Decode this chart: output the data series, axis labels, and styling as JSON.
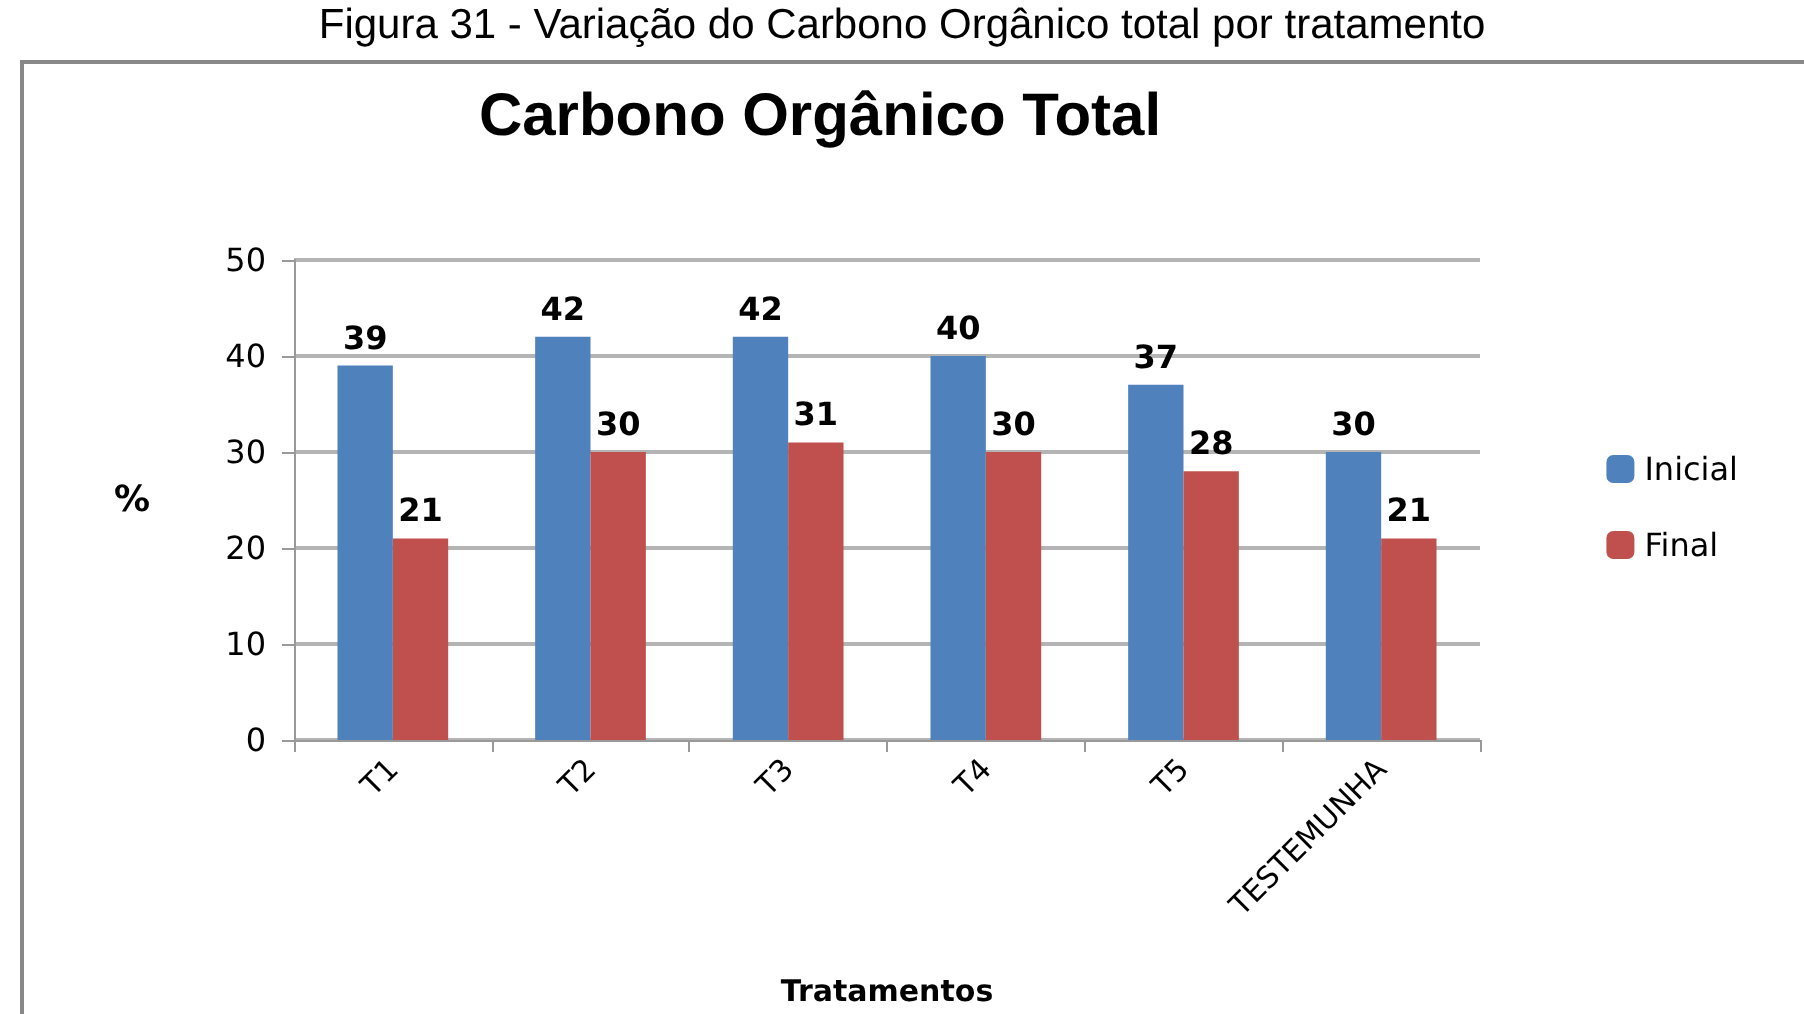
{
  "chart_data": {
    "type": "bar",
    "title": "Carbono Orgânico Total",
    "annotations": [
      "Figura 31 - Variação do Carbono Orgânico total por tratamento"
    ],
    "xlabel": "Tratamentos",
    "ylabel": "%",
    "categories": [
      "T1",
      "T2",
      "T3",
      "T4",
      "T5",
      "TESTEMUNHA"
    ],
    "series": [
      {
        "name": "Inicial",
        "color": "#4f81bd",
        "values": [
          39,
          42,
          42,
          40,
          37,
          30
        ]
      },
      {
        "name": "Final",
        "color": "#c0504d",
        "values": [
          21,
          30,
          31,
          30,
          28,
          21
        ]
      }
    ],
    "ylim": [
      0,
      50
    ],
    "yticks": [
      0,
      10,
      20,
      30,
      40,
      50
    ],
    "grid": "y",
    "legend": "right",
    "data_labels": true
  }
}
